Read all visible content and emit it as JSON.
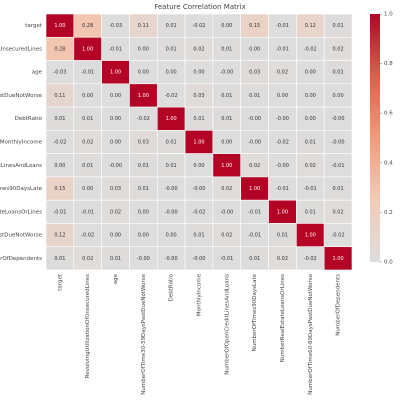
{
  "chart_data": {
    "type": "heatmap",
    "title": "Feature Correlation Matrix",
    "categories": [
      "target",
      "RevolvingUtilizationOfUnsecuredLines",
      "age",
      "NumberOfTime30-59DaysPastDueNotWorse",
      "DebtRatio",
      "MonthlyIncome",
      "NumberOfOpenCreditLinesAndLoans",
      "NumberOfTimes90DaysLate",
      "NumberRealEstateLoansOrLines",
      "NumberOfTime60-89DaysPastDueNotWorse",
      "NumberOfDependents"
    ],
    "values": [
      [
        1.0,
        0.28,
        -0.03,
        0.11,
        0.01,
        -0.02,
        0.002,
        0.15,
        -0.01,
        0.12,
        0.01
      ],
      [
        0.28,
        1.0,
        -0.01,
        0.002,
        0.01,
        0.02,
        0.01,
        0.002,
        -0.01,
        -0.02,
        0.02
      ],
      [
        -0.03,
        -0.01,
        1.0,
        0.002,
        0.002,
        0.002,
        -0.002,
        0.03,
        0.02,
        0.002,
        0.01
      ],
      [
        0.11,
        0.002,
        0.002,
        1.0,
        -0.02,
        0.03,
        0.01,
        0.01,
        0.002,
        0.002,
        0.002
      ],
      [
        0.01,
        0.01,
        0.002,
        -0.02,
        1.0,
        0.01,
        0.01,
        -0.002,
        -0.002,
        0.002,
        -0.002
      ],
      [
        -0.02,
        0.02,
        0.002,
        0.03,
        0.01,
        1.0,
        0.002,
        -0.002,
        -0.02,
        0.01,
        -0.002
      ],
      [
        0.002,
        0.01,
        -0.002,
        0.01,
        0.01,
        0.002,
        1.0,
        0.02,
        -0.002,
        0.02,
        -0.01
      ],
      [
        0.15,
        0.002,
        0.03,
        0.01,
        -0.002,
        -0.002,
        0.02,
        1.0,
        -0.01,
        -0.01,
        0.01
      ],
      [
        -0.01,
        -0.01,
        0.02,
        0.002,
        -0.002,
        -0.02,
        -0.002,
        -0.01,
        1.0,
        0.01,
        0.02
      ],
      [
        0.12,
        -0.02,
        0.002,
        0.002,
        0.002,
        0.01,
        0.02,
        -0.01,
        0.01,
        1.0,
        -0.02
      ],
      [
        0.01,
        0.02,
        0.01,
        -0.002,
        -0.002,
        -0.002,
        -0.01,
        0.01,
        0.02,
        -0.02,
        1.0
      ]
    ],
    "value_labels": [
      [
        "1.00",
        "0.28",
        "-0.03",
        "0.11",
        "0.01",
        "-0.02",
        "0.00",
        "0.15",
        "-0.01",
        "0.12",
        "0.01"
      ],
      [
        "0.28",
        "1.00",
        "-0.01",
        "0.00",
        "0.01",
        "0.02",
        "0.01",
        "0.00",
        "-0.01",
        "-0.02",
        "0.02"
      ],
      [
        "-0.03",
        "-0.01",
        "1.00",
        "0.00",
        "0.00",
        "0.00",
        "-0.00",
        "0.03",
        "0.02",
        "0.00",
        "0.01"
      ],
      [
        "0.11",
        "0.00",
        "0.00",
        "1.00",
        "-0.02",
        "0.03",
        "0.01",
        "0.01",
        "0.00",
        "0.00",
        "0.00"
      ],
      [
        "0.01",
        "0.01",
        "0.00",
        "-0.02",
        "1.00",
        "0.01",
        "0.01",
        "-0.00",
        "-0.00",
        "0.00",
        "-0.00"
      ],
      [
        "-0.02",
        "0.02",
        "0.00",
        "0.03",
        "0.01",
        "1.00",
        "0.00",
        "-0.00",
        "-0.02",
        "0.01",
        "-0.00"
      ],
      [
        "0.00",
        "0.01",
        "-0.00",
        "0.01",
        "0.01",
        "0.00",
        "1.00",
        "0.02",
        "-0.00",
        "0.02",
        "-0.01"
      ],
      [
        "0.15",
        "0.00",
        "0.03",
        "0.01",
        "-0.00",
        "-0.00",
        "0.02",
        "1.00",
        "-0.01",
        "-0.01",
        "0.01"
      ],
      [
        "-0.01",
        "-0.01",
        "0.02",
        "0.00",
        "-0.00",
        "-0.02",
        "-0.00",
        "-0.01",
        "1.00",
        "0.01",
        "0.02"
      ],
      [
        "0.12",
        "-0.02",
        "0.00",
        "0.00",
        "0.00",
        "0.01",
        "0.02",
        "-0.01",
        "0.01",
        "1.00",
        "-0.02"
      ],
      [
        "0.01",
        "0.02",
        "0.01",
        "-0.00",
        "-0.00",
        "-0.00",
        "-0.01",
        "0.01",
        "0.02",
        "-0.02",
        "1.00"
      ]
    ],
    "colors": [
      "#dddddd",
      "#f2cbb7",
      "#f39a7b",
      "#dd5f4b",
      "#b40426"
    ],
    "clim": [
      0,
      1
    ],
    "colorbar_ticks": [
      {
        "value": 0,
        "label": "0.0"
      },
      {
        "value": 0.2,
        "label": "0.2"
      },
      {
        "value": 0.4,
        "label": "0.4"
      },
      {
        "value": 0.6,
        "label": "0.6"
      },
      {
        "value": 0.8,
        "label": "0.8"
      },
      {
        "value": 1,
        "label": "1.0"
      }
    ]
  }
}
